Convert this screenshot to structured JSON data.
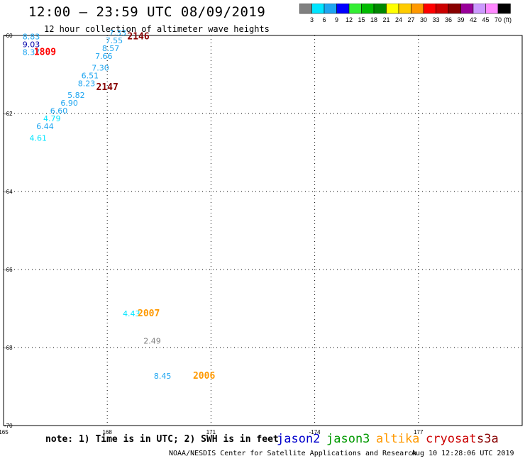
{
  "header": {
    "title": "12:00 – 23:59 UTC 08/09/2019",
    "subtitle": "12 hour collection of altimeter wave heights"
  },
  "colorbar": {
    "unit": "(ft)",
    "swatches": [
      {
        "label": "3",
        "color": "#808080"
      },
      {
        "label": "6",
        "color": "#00e5ff"
      },
      {
        "label": "9",
        "color": "#1ea5f0"
      },
      {
        "label": "12",
        "color": "#0000ff"
      },
      {
        "label": "15",
        "color": "#33ee33"
      },
      {
        "label": "18",
        "color": "#00bb00"
      },
      {
        "label": "21",
        "color": "#008800"
      },
      {
        "label": "24",
        "color": "#ffff00"
      },
      {
        "label": "27",
        "color": "#ffcc00"
      },
      {
        "label": "30",
        "color": "#ff9900"
      },
      {
        "label": "33",
        "color": "#ff0000"
      },
      {
        "label": "36",
        "color": "#cc0000"
      },
      {
        "label": "39",
        "color": "#880000"
      },
      {
        "label": "42",
        "color": "#990099"
      },
      {
        "label": "45",
        "color": "#cc99ff"
      },
      {
        "label": "70",
        "color": "#ff88ff"
      },
      {
        "label": "",
        "color": "#000000"
      }
    ]
  },
  "chart_data": {
    "type": "scatter",
    "xlim": [
      165,
      180
    ],
    "ylim": [
      -70,
      -60
    ],
    "x_ticks": [
      {
        "label": "165",
        "value": 165
      },
      {
        "label": "168",
        "value": 168
      },
      {
        "label": "171",
        "value": 171
      },
      {
        "label": "-174",
        "value": 174
      },
      {
        "label": "177",
        "value": 177
      }
    ],
    "y_ticks": [
      {
        "label": "-60",
        "value": -60
      },
      {
        "label": "-62",
        "value": -62
      },
      {
        "label": "-64",
        "value": -64
      },
      {
        "label": "-66",
        "value": -66
      },
      {
        "label": "-68",
        "value": -68
      },
      {
        "label": "-70",
        "value": -70
      }
    ],
    "points": [
      {
        "lon": 165.8,
        "lat": -60.1,
        "value": "8.83",
        "color": "#1ea5f0"
      },
      {
        "lon": 165.8,
        "lat": -60.3,
        "value": "9.03",
        "color": "#0000aa"
      },
      {
        "lon": 165.8,
        "lat": -60.5,
        "value": "8.37",
        "color": "#1ea5f0"
      },
      {
        "lon": 168.3,
        "lat": -60.0,
        "value": "7.33",
        "color": "#1ea5f0"
      },
      {
        "lon": 168.2,
        "lat": -60.2,
        "value": "7.55",
        "color": "#1ea5f0"
      },
      {
        "lon": 168.1,
        "lat": -60.4,
        "value": "8.57",
        "color": "#1ea5f0"
      },
      {
        "lon": 167.9,
        "lat": -60.6,
        "value": "7.66",
        "color": "#1ea5f0"
      },
      {
        "lon": 167.8,
        "lat": -60.9,
        "value": "7.30",
        "color": "#1ea5f0"
      },
      {
        "lon": 167.5,
        "lat": -61.1,
        "value": "6.51",
        "color": "#1ea5f0"
      },
      {
        "lon": 167.4,
        "lat": -61.3,
        "value": "8.23",
        "color": "#1ea5f0"
      },
      {
        "lon": 167.1,
        "lat": -61.6,
        "value": "5.82",
        "color": "#1ea5f0"
      },
      {
        "lon": 166.9,
        "lat": -61.8,
        "value": "6.90",
        "color": "#1ea5f0"
      },
      {
        "lon": 166.6,
        "lat": -62.0,
        "value": "6.60",
        "color": "#1ea5f0"
      },
      {
        "lon": 166.4,
        "lat": -62.2,
        "value": "4.79",
        "color": "#00e5ff"
      },
      {
        "lon": 166.2,
        "lat": -62.4,
        "value": "6.44",
        "color": "#1ea5f0"
      },
      {
        "lon": 166.0,
        "lat": -62.7,
        "value": "4.61",
        "color": "#00e5ff"
      },
      {
        "lon": 168.7,
        "lat": -67.2,
        "value": "4.43",
        "color": "#00e5ff"
      },
      {
        "lon": 169.3,
        "lat": -67.9,
        "value": "2.49",
        "color": "#808080"
      },
      {
        "lon": 169.6,
        "lat": -68.8,
        "value": "8.45",
        "color": "#1ea5f0"
      }
    ],
    "time_labels": [
      {
        "lon": 168.9,
        "lat": -60.1,
        "text": "2146",
        "color": "#880000"
      },
      {
        "lon": 166.2,
        "lat": -60.5,
        "text": "1809",
        "color": "#ff0000"
      },
      {
        "lon": 168.0,
        "lat": -61.4,
        "text": "2147",
        "color": "#880000"
      },
      {
        "lon": 169.2,
        "lat": -67.2,
        "text": "2007",
        "color": "#ff9900"
      },
      {
        "lon": 170.8,
        "lat": -68.8,
        "text": "2006",
        "color": "#ff9900"
      }
    ]
  },
  "footer": {
    "note": "note: 1) Time is in UTC; 2) SWH is in feet",
    "credit": "NOAA/NESDIS Center for Satellite Applications and Research",
    "timestamp": "Aug 10 12:28:06 UTC 2019",
    "satellites": [
      {
        "name": "jason2",
        "color": "#0000cc"
      },
      {
        "name": "jason3",
        "color": "#009900"
      },
      {
        "name": "altika",
        "color": "#ff9900"
      },
      {
        "name": "cryosat",
        "color": "#cc0000"
      },
      {
        "name": "s3a",
        "color": "#880000"
      }
    ]
  }
}
